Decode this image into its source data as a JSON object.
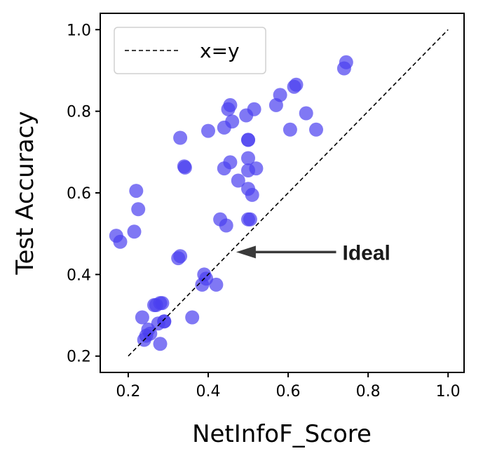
{
  "chart_data": {
    "type": "scatter",
    "title": "",
    "xlabel": "NetInfoF_Score",
    "ylabel": "Test Accuracy",
    "xlim": [
      0.13,
      1.04
    ],
    "ylim": [
      0.16,
      1.04
    ],
    "xticks": [
      0.2,
      0.4,
      0.6,
      0.8,
      1.0
    ],
    "yticks": [
      0.2,
      0.4,
      0.6,
      0.8,
      1.0
    ],
    "xtick_labels": [
      "0.2",
      "0.4",
      "0.6",
      "0.8",
      "1.0"
    ],
    "ytick_labels": [
      "0.2",
      "0.4",
      "0.6",
      "0.8",
      "1.0"
    ],
    "grid": false,
    "legend": {
      "placement": "top-left",
      "entries": [
        "x=y"
      ]
    },
    "point_color": "#4a3ef0",
    "reference_line": {
      "label": "x=y",
      "from": [
        0.2,
        0.2
      ],
      "to": [
        1.0,
        1.0
      ],
      "style": "dashed",
      "color": "#000000"
    },
    "annotation": {
      "text": "Ideal",
      "arrow_tip": [
        0.47,
        0.455
      ],
      "arrow_tail": [
        0.72,
        0.455
      ],
      "color": "#3a3a3a"
    },
    "points": [
      [
        0.17,
        0.495
      ],
      [
        0.18,
        0.48
      ],
      [
        0.215,
        0.505
      ],
      [
        0.22,
        0.605
      ],
      [
        0.225,
        0.56
      ],
      [
        0.235,
        0.295
      ],
      [
        0.24,
        0.24
      ],
      [
        0.245,
        0.25
      ],
      [
        0.25,
        0.265
      ],
      [
        0.255,
        0.255
      ],
      [
        0.265,
        0.325
      ],
      [
        0.27,
        0.325
      ],
      [
        0.275,
        0.28
      ],
      [
        0.28,
        0.33
      ],
      [
        0.285,
        0.33
      ],
      [
        0.28,
        0.23
      ],
      [
        0.29,
        0.285
      ],
      [
        0.29,
        0.285
      ],
      [
        0.325,
        0.44
      ],
      [
        0.33,
        0.445
      ],
      [
        0.33,
        0.735
      ],
      [
        0.34,
        0.665
      ],
      [
        0.342,
        0.662
      ],
      [
        0.36,
        0.295
      ],
      [
        0.385,
        0.375
      ],
      [
        0.39,
        0.4
      ],
      [
        0.395,
        0.39
      ],
      [
        0.4,
        0.752
      ],
      [
        0.42,
        0.375
      ],
      [
        0.43,
        0.535
      ],
      [
        0.44,
        0.76
      ],
      [
        0.44,
        0.66
      ],
      [
        0.445,
        0.52
      ],
      [
        0.45,
        0.805
      ],
      [
        0.455,
        0.675
      ],
      [
        0.455,
        0.815
      ],
      [
        0.46,
        0.775
      ],
      [
        0.475,
        0.63
      ],
      [
        0.495,
        0.79
      ],
      [
        0.5,
        0.73
      ],
      [
        0.5,
        0.73
      ],
      [
        0.5,
        0.685
      ],
      [
        0.5,
        0.655
      ],
      [
        0.5,
        0.61
      ],
      [
        0.5,
        0.535
      ],
      [
        0.505,
        0.535
      ],
      [
        0.51,
        0.595
      ],
      [
        0.515,
        0.805
      ],
      [
        0.52,
        0.66
      ],
      [
        0.57,
        0.815
      ],
      [
        0.58,
        0.84
      ],
      [
        0.605,
        0.755
      ],
      [
        0.615,
        0.86
      ],
      [
        0.62,
        0.865
      ],
      [
        0.645,
        0.795
      ],
      [
        0.67,
        0.755
      ],
      [
        0.74,
        0.905
      ],
      [
        0.745,
        0.92
      ]
    ]
  }
}
